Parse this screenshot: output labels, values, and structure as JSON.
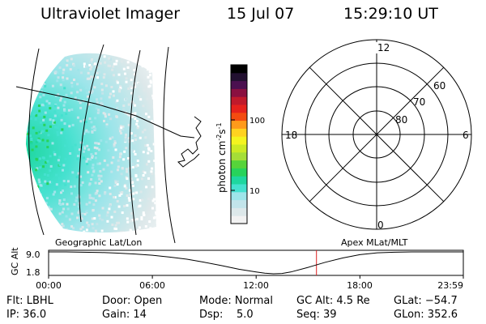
{
  "header": {
    "instrument": "Ultraviolet Imager",
    "date": "15 Jul 07",
    "time": "15:29:10 UT"
  },
  "colorbar": {
    "unit_label": "photon cm",
    "unit_sup1": "-2",
    "unit_mid": "s",
    "unit_sup2": "-1",
    "ticks": [
      "100",
      "10"
    ],
    "colors": [
      "#f2f2f2",
      "#dde8ea",
      "#c2e4ea",
      "#9ee5ea",
      "#45e1cf",
      "#1ed79f",
      "#27d35b",
      "#56d43a",
      "#a5de37",
      "#ccea24",
      "#f4f41f",
      "#ffd220",
      "#ff9a1b",
      "#f44b10",
      "#e6221c",
      "#c01a2b",
      "#8a1040",
      "#4b1050",
      "#221030",
      "#000000"
    ]
  },
  "polar": {
    "mlt_top": "12",
    "mlt_left": "18",
    "mlt_right": "6",
    "mlt_bottom": "0",
    "lat_60": "60",
    "lat_70": "70",
    "lat_80": "80"
  },
  "timeline": {
    "left_label": "Geographic Lat/Lon",
    "right_label": "Apex MLat/MLT",
    "y_axis_label": "GC Alt",
    "y_ticks": [
      "9.0",
      "1.8"
    ],
    "x_ticks": [
      "00:00",
      "06:00",
      "12:00",
      "18:00",
      "23:59"
    ]
  },
  "info": {
    "flt": "Flt: LBHL",
    "ip": "IP: 36.0",
    "door": "Door: Open",
    "gain": "Gain: 14",
    "mode": "Mode: Normal",
    "dsp": "Dsp:    5.0",
    "gcalt": "GC Alt: 4.5 Re",
    "seq": "Seq: 39",
    "glat": "GLat: −54.7",
    "glon": "GLon: 352.6"
  },
  "chart_data": {
    "type": "line",
    "x": [
      "00:00",
      "01:00",
      "02:00",
      "03:00",
      "04:00",
      "05:00",
      "06:00",
      "07:00",
      "08:00",
      "09:00",
      "10:00",
      "11:00",
      "12:00",
      "12:30",
      "13:00",
      "13:30",
      "14:00",
      "15:00",
      "16:00",
      "17:00",
      "18:00",
      "19:00",
      "20:00",
      "21:00",
      "22:00",
      "23:00",
      "23:59"
    ],
    "values": [
      9.0,
      9.0,
      8.9,
      8.8,
      8.6,
      8.3,
      7.9,
      7.3,
      6.6,
      5.6,
      4.5,
      3.3,
      2.4,
      2.0,
      1.8,
      1.9,
      2.4,
      3.9,
      5.6,
      7.0,
      8.1,
      8.7,
      8.9,
      9.0,
      9.0,
      9.0,
      9.0
    ],
    "ylim": [
      1.8,
      9.0
    ],
    "xlim": [
      0,
      23.98
    ],
    "marker_time": "15:29",
    "marker_value_hours": 15.49,
    "marker_color": "#dd2222",
    "line_color": "#000000"
  }
}
